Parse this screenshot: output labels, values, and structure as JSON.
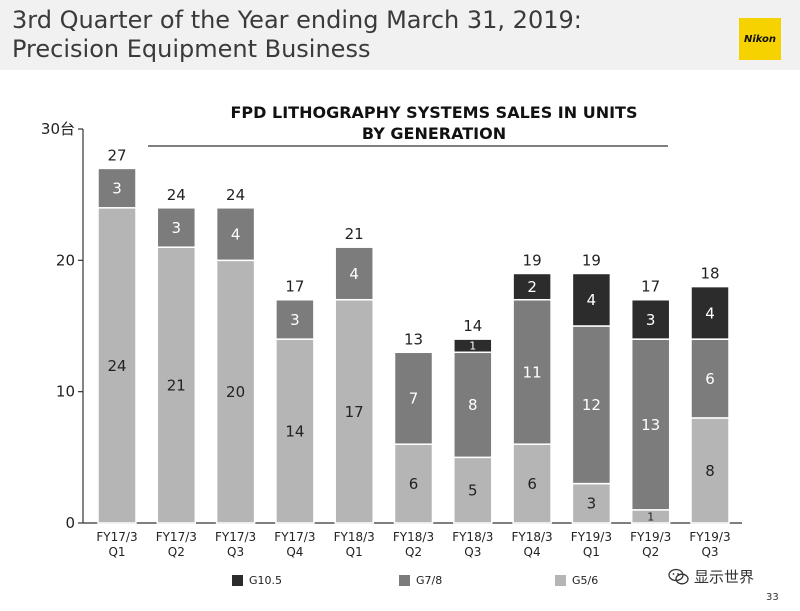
{
  "header": {
    "title": "3rd Quarter of the Year ending March 31, 2019:\nPrecision Equipment Business",
    "logo_text": "Nikon"
  },
  "chart_data": {
    "type": "bar",
    "stacked": true,
    "title": "FPD LITHOGRAPHY SYSTEMS SALES IN UNITS\nBY GENERATION",
    "ylim": [
      0,
      30
    ],
    "yticks": [
      {
        "value": 0,
        "label": "0"
      },
      {
        "value": 10,
        "label": "10"
      },
      {
        "value": 20,
        "label": "20"
      },
      {
        "value": 30,
        "label": "30台"
      }
    ],
    "categories": [
      "FY17/3\nQ1",
      "FY17/3\nQ2",
      "FY17/3\nQ3",
      "FY17/3\nQ4",
      "FY18/3\nQ1",
      "FY18/3\nQ2",
      "FY18/3\nQ3",
      "FY18/3\nQ4",
      "FY19/3\nQ1",
      "FY19/3\nQ2",
      "FY19/3\nQ3"
    ],
    "series": [
      {
        "name": "G5/6",
        "color": "#b5b5b5",
        "label_color": "#222222",
        "values": [
          24,
          21,
          20,
          14,
          17,
          6,
          5,
          6,
          3,
          1,
          8
        ]
      },
      {
        "name": "G7/8",
        "color": "#7c7c7c",
        "label_color": "#ffffff",
        "values": [
          3,
          3,
          4,
          3,
          4,
          7,
          8,
          11,
          12,
          13,
          6
        ]
      },
      {
        "name": "G10.5",
        "color": "#2c2c2c",
        "label_color": "#ffffff",
        "values": [
          0,
          0,
          0,
          0,
          0,
          0,
          1,
          2,
          4,
          3,
          4
        ]
      }
    ],
    "totals": [
      27,
      24,
      24,
      17,
      21,
      13,
      14,
      19,
      19,
      17,
      18
    ],
    "legend": [
      {
        "name": "G10.5",
        "color": "#2c2c2c"
      },
      {
        "name": "G7/8",
        "color": "#7c7c7c"
      },
      {
        "name": "G5/6",
        "color": "#b5b5b5"
      }
    ],
    "legend_position": "bottom"
  },
  "watermark": {
    "text": "显示世界",
    "icon": "wechat-icon"
  },
  "footer": {
    "page_number": "33"
  }
}
